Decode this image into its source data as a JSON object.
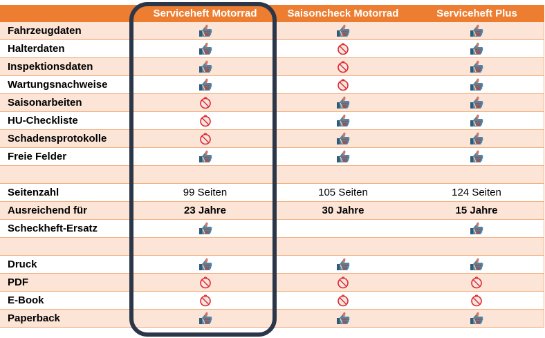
{
  "colors": {
    "header_bg": "#ED7D31",
    "row_alt_bg": "#FCE4D6",
    "row_separator": "#F4B183",
    "highlight_frame": "#2B3648",
    "no_icon": "#E0262B"
  },
  "header": {
    "columns": [
      "",
      "Serviceheft Motorrad",
      "Saisoncheck Motorrad",
      "Serviceheft Plus"
    ]
  },
  "highlighted_column": "Serviceheft Motorrad",
  "rows": [
    {
      "label": "Fahrzeugdaten",
      "style": "alt",
      "values": [
        {
          "type": "icon",
          "icon": "thumbs-up-icon"
        },
        {
          "type": "icon",
          "icon": "thumbs-up-icon"
        },
        {
          "type": "icon",
          "icon": "thumbs-up-icon"
        }
      ]
    },
    {
      "label": "Halterdaten",
      "style": "white",
      "values": [
        {
          "type": "icon",
          "icon": "thumbs-up-icon"
        },
        {
          "type": "icon",
          "icon": "no-icon"
        },
        {
          "type": "icon",
          "icon": "thumbs-up-icon"
        }
      ]
    },
    {
      "label": "Inspektionsdaten",
      "style": "alt",
      "values": [
        {
          "type": "icon",
          "icon": "thumbs-up-icon"
        },
        {
          "type": "icon",
          "icon": "no-icon"
        },
        {
          "type": "icon",
          "icon": "thumbs-up-icon"
        }
      ]
    },
    {
      "label": "Wartungsnachweise",
      "style": "white",
      "values": [
        {
          "type": "icon",
          "icon": "thumbs-up-icon"
        },
        {
          "type": "icon",
          "icon": "no-icon"
        },
        {
          "type": "icon",
          "icon": "thumbs-up-icon"
        }
      ]
    },
    {
      "label": "Saisonarbeiten",
      "style": "alt",
      "values": [
        {
          "type": "icon",
          "icon": "no-icon"
        },
        {
          "type": "icon",
          "icon": "thumbs-up-icon"
        },
        {
          "type": "icon",
          "icon": "thumbs-up-icon"
        }
      ]
    },
    {
      "label": "HU-Checkliste",
      "style": "white",
      "values": [
        {
          "type": "icon",
          "icon": "no-icon"
        },
        {
          "type": "icon",
          "icon": "thumbs-up-icon"
        },
        {
          "type": "icon",
          "icon": "thumbs-up-icon"
        }
      ]
    },
    {
      "label": "Schadensprotokolle",
      "style": "alt",
      "values": [
        {
          "type": "icon",
          "icon": "no-icon"
        },
        {
          "type": "icon",
          "icon": "thumbs-up-icon"
        },
        {
          "type": "icon",
          "icon": "thumbs-up-icon"
        }
      ]
    },
    {
      "label": "Freie Felder",
      "style": "white",
      "values": [
        {
          "type": "icon",
          "icon": "thumbs-up-icon"
        },
        {
          "type": "icon",
          "icon": "thumbs-up-icon"
        },
        {
          "type": "icon",
          "icon": "thumbs-up-icon"
        }
      ]
    },
    {
      "label": "",
      "style": "alt",
      "values": [
        {
          "type": "empty"
        },
        {
          "type": "empty"
        },
        {
          "type": "empty"
        }
      ]
    },
    {
      "label": "Seitenzahl",
      "style": "white",
      "values": [
        {
          "type": "text",
          "text": "99 Seiten"
        },
        {
          "type": "text",
          "text": "105 Seiten"
        },
        {
          "type": "text",
          "text": "124 Seiten"
        }
      ]
    },
    {
      "label": "Ausreichend für",
      "style": "alt",
      "values": [
        {
          "type": "bold",
          "text": "23 Jahre"
        },
        {
          "type": "bold",
          "text": "30 Jahre"
        },
        {
          "type": "bold",
          "text": "15 Jahre"
        }
      ]
    },
    {
      "label": "Scheckheft-Ersatz",
      "style": "white",
      "values": [
        {
          "type": "icon",
          "icon": "thumbs-up-icon"
        },
        {
          "type": "empty"
        },
        {
          "type": "icon",
          "icon": "thumbs-up-icon"
        }
      ]
    },
    {
      "label": "",
      "style": "alt",
      "values": [
        {
          "type": "empty"
        },
        {
          "type": "empty"
        },
        {
          "type": "empty"
        }
      ]
    },
    {
      "label": "Druck",
      "style": "white",
      "values": [
        {
          "type": "icon",
          "icon": "thumbs-up-icon"
        },
        {
          "type": "icon",
          "icon": "thumbs-up-icon"
        },
        {
          "type": "icon",
          "icon": "thumbs-up-icon"
        }
      ]
    },
    {
      "label": "PDF",
      "style": "alt",
      "values": [
        {
          "type": "icon",
          "icon": "no-icon"
        },
        {
          "type": "icon",
          "icon": "no-icon"
        },
        {
          "type": "icon",
          "icon": "no-icon"
        }
      ]
    },
    {
      "label": "E-Book",
      "style": "white",
      "values": [
        {
          "type": "icon",
          "icon": "no-icon"
        },
        {
          "type": "icon",
          "icon": "no-icon"
        },
        {
          "type": "icon",
          "icon": "no-icon"
        }
      ]
    },
    {
      "label": "Paperback",
      "style": "alt",
      "values": [
        {
          "type": "icon",
          "icon": "thumbs-up-icon"
        },
        {
          "type": "icon",
          "icon": "thumbs-up-icon"
        },
        {
          "type": "icon",
          "icon": "thumbs-up-icon"
        }
      ]
    }
  ]
}
